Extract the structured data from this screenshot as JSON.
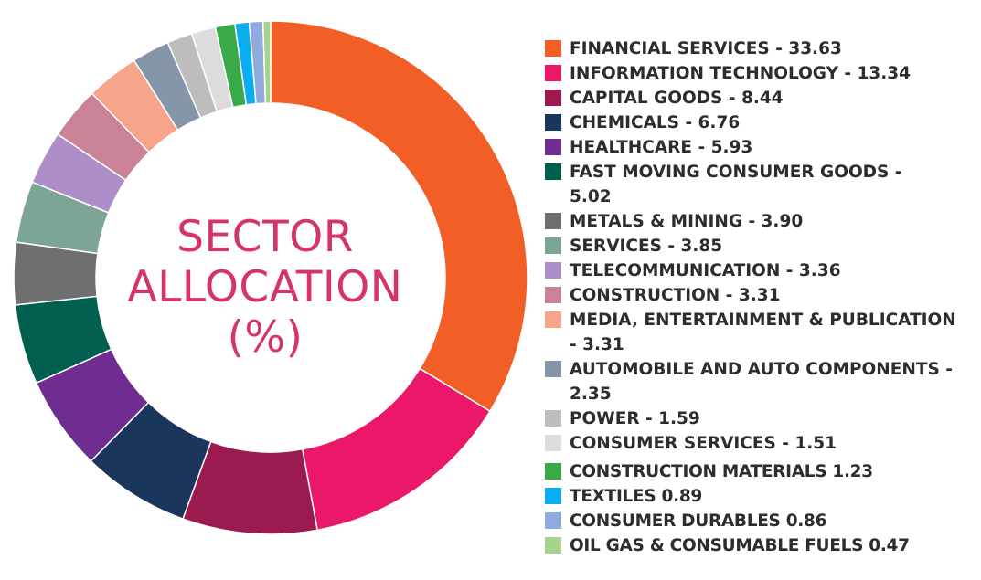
{
  "chart_data": {
    "type": "pie",
    "title": "SECTOR ALLOCATION (%)",
    "title_lines": [
      "SECTOR",
      "ALLOCATION",
      "(%)"
    ],
    "title_color": "#d6336c",
    "donut": true,
    "legend_position": "right",
    "slices": [
      {
        "label": "FINANCIAL SERVICES - 33.63",
        "value": 33.63,
        "color": "#f15f27"
      },
      {
        "label": "INFORMATION TECHNOLOGY - 13.34",
        "value": 13.34,
        "color": "#eb1768"
      },
      {
        "label": "CAPITAL GOODS - 8.44",
        "value": 8.44,
        "color": "#9b1b4e"
      },
      {
        "label": "CHEMICALS - 6.76",
        "value": 6.76,
        "color": "#1b365d"
      },
      {
        "label": "HEALTHCARE - 5.93",
        "value": 5.93,
        "color": "#6f2c91"
      },
      {
        "label": "FAST MOVING CONSUMER GOODS - 5.02",
        "value": 5.02,
        "color": "#005f4e"
      },
      {
        "label": "METALS & MINING - 3.90",
        "value": 3.9,
        "color": "#6f6f6f"
      },
      {
        "label": "SERVICES - 3.85",
        "value": 3.85,
        "color": "#7da596"
      },
      {
        "label": "TELECOMMUNICATION - 3.36",
        "value": 3.36,
        "color": "#ae8ec8"
      },
      {
        "label": "CONSTRUCTION - 3.31",
        "value": 3.31,
        "color": "#c98296"
      },
      {
        "label": "MEDIA, ENTERTAINMENT & PUBLICATION - 3.31",
        "value": 3.31,
        "color": "#f6a58a"
      },
      {
        "label": "AUTOMOBILE AND AUTO COMPONENTS - 2.35",
        "value": 2.35,
        "color": "#8595aa"
      },
      {
        "label": "POWER - 1.59",
        "value": 1.59,
        "color": "#bdbdbd"
      },
      {
        "label": "CONSUMER SERVICES - 1.51",
        "value": 1.51,
        "color": "#dcdcdc"
      },
      {
        "label": "CONSTRUCTION MATERIALS  1.23",
        "value": 1.23,
        "color": "#3aaa48"
      },
      {
        "label": "TEXTILES  0.89",
        "value": 0.89,
        "color": "#0aadf0"
      },
      {
        "label": "CONSUMER DURABLES  0.86",
        "value": 0.86,
        "color": "#8faadc"
      },
      {
        "label": "OIL GAS & CONSUMABLE FUELS  0.47",
        "value": 0.47,
        "color": "#a6d38c"
      }
    ]
  }
}
